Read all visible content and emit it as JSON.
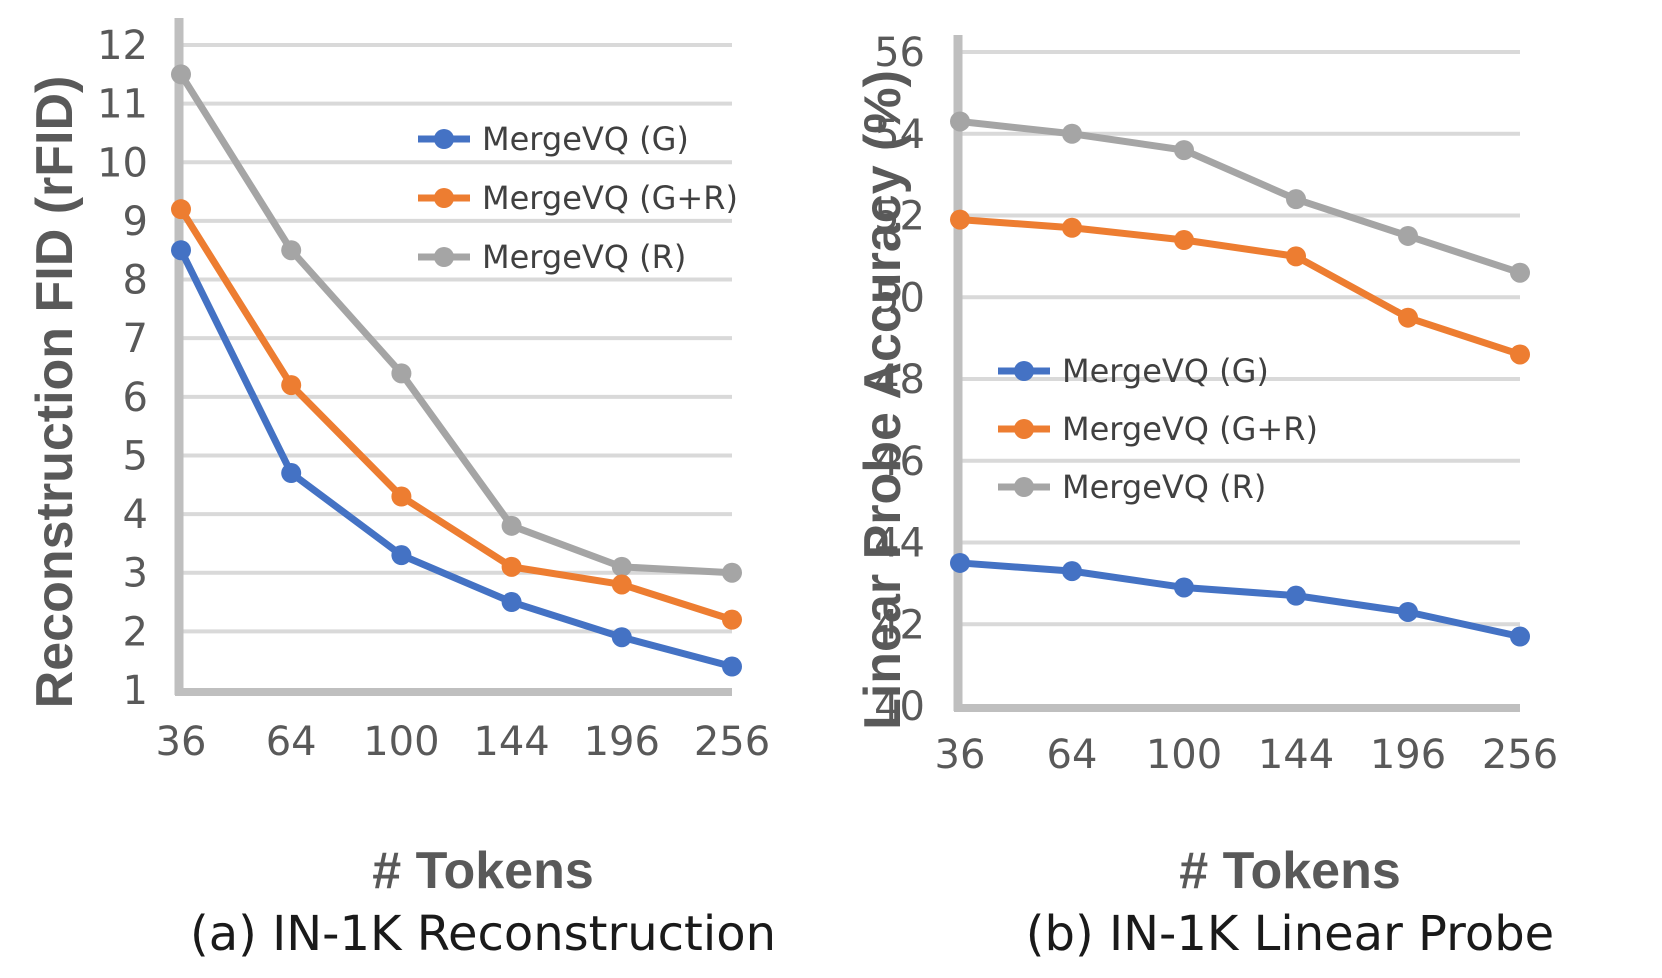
{
  "colors": {
    "G": "#4472C4",
    "GR": "#ED7D31",
    "R": "#A5A5A5",
    "grid": "#D9D9D9",
    "axis": "#BFBFBF"
  },
  "chart_data": [
    {
      "type": "line",
      "caption": "(a) IN-1K Reconstruction",
      "xlabel": "# Tokens",
      "ylabel": "Reconstruction FID (rFID)",
      "categories": [
        "36",
        "64",
        "100",
        "144",
        "196",
        "256"
      ],
      "ylim": [
        1,
        12
      ],
      "yticks": [
        1,
        2,
        3,
        4,
        5,
        6,
        7,
        8,
        9,
        10,
        11,
        12
      ],
      "grid": true,
      "legend_position": "top-right",
      "series": [
        {
          "key": "G",
          "name": "MergeVQ (G)",
          "values": [
            8.5,
            4.7,
            3.3,
            2.5,
            1.9,
            1.4
          ]
        },
        {
          "key": "GR",
          "name": "MergeVQ (G+R)",
          "values": [
            9.2,
            6.2,
            4.3,
            3.1,
            2.8,
            2.2
          ]
        },
        {
          "key": "R",
          "name": "MergeVQ (R)",
          "values": [
            11.5,
            8.5,
            6.4,
            3.8,
            3.1,
            3.0
          ]
        }
      ]
    },
    {
      "type": "line",
      "caption": "(b) IN-1K Linear Probe",
      "xlabel": "# Tokens",
      "ylabel": "Linear Probe Accuracy (%)",
      "categories": [
        "36",
        "64",
        "100",
        "144",
        "196",
        "256"
      ],
      "ylim": [
        40,
        56
      ],
      "yticks": [
        40,
        42,
        44,
        46,
        48,
        50,
        52,
        54,
        56
      ],
      "grid": true,
      "legend_position": "center-left",
      "series": [
        {
          "key": "G",
          "name": "MergeVQ (G)",
          "values": [
            43.5,
            43.3,
            42.9,
            42.7,
            42.3,
            41.7
          ]
        },
        {
          "key": "GR",
          "name": "MergeVQ (G+R)",
          "values": [
            51.9,
            51.7,
            51.4,
            51.0,
            49.5,
            48.6
          ]
        },
        {
          "key": "R",
          "name": "MergeVQ (R)",
          "values": [
            54.3,
            54.0,
            53.6,
            52.4,
            51.5,
            50.6
          ]
        }
      ]
    }
  ]
}
